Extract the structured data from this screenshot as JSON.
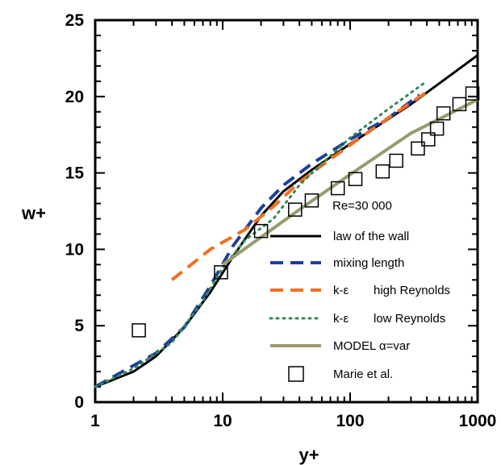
{
  "chart_data": {
    "type": "line",
    "xscale": "log",
    "xlim": [
      1,
      1000
    ],
    "ylim": [
      0,
      25
    ],
    "xlabel": "y+",
    "ylabel": "w+",
    "x_ticks": [
      "1",
      "10",
      "100",
      "1000"
    ],
    "y_ticks": [
      "0",
      "5",
      "10",
      "15",
      "20",
      "25"
    ],
    "legend_title": "Re=30 000",
    "legend_position": "lower-right",
    "grid": false,
    "series": [
      {
        "name": "law of the wall",
        "style": "solid",
        "color": "#000000",
        "points": [
          [
            1,
            1.0
          ],
          [
            2,
            2.0
          ],
          [
            3,
            3.0
          ],
          [
            5,
            4.9
          ],
          [
            8,
            7.2
          ],
          [
            12,
            9.5
          ],
          [
            20,
            12.2
          ],
          [
            30,
            13.8
          ],
          [
            50,
            15.2
          ],
          [
            100,
            16.9
          ],
          [
            300,
            19.5
          ],
          [
            1000,
            22.7
          ]
        ]
      },
      {
        "name": "mixing length",
        "style": "dashed",
        "color": "#1f3f9a",
        "points": [
          [
            1,
            1.0
          ],
          [
            2,
            2.4
          ],
          [
            3,
            3.2
          ],
          [
            5,
            4.9
          ],
          [
            8,
            7.6
          ],
          [
            12,
            10.2
          ],
          [
            20,
            12.7
          ],
          [
            30,
            14.2
          ],
          [
            50,
            15.6
          ],
          [
            100,
            17.2
          ],
          [
            200,
            18.6
          ],
          [
            350,
            20.1
          ]
        ]
      },
      {
        "name": "k-ε high Reynolds",
        "style": "dashed",
        "color": "#f07020",
        "points": [
          [
            4,
            8.0
          ],
          [
            8,
            10.0
          ],
          [
            15,
            11.3
          ],
          [
            25,
            12.8
          ],
          [
            40,
            14.4
          ],
          [
            70,
            15.9
          ],
          [
            120,
            17.3
          ],
          [
            200,
            18.6
          ],
          [
            400,
            20.3
          ]
        ]
      },
      {
        "name": "k-ε low Reynolds",
        "style": "dotted",
        "color": "#2e8b57",
        "points": [
          [
            1,
            1.0
          ],
          [
            2,
            2.2
          ],
          [
            4,
            3.9
          ],
          [
            7,
            6.6
          ],
          [
            10,
            8.8
          ],
          [
            15,
            10.6
          ],
          [
            25,
            12.0
          ],
          [
            40,
            14.2
          ],
          [
            60,
            15.6
          ],
          [
            100,
            17.3
          ],
          [
            200,
            19.2
          ],
          [
            400,
            21.0
          ]
        ]
      },
      {
        "name": "MODEL α=var",
        "style": "solid",
        "color": "#9a9a70",
        "points": [
          [
            10,
            9.0
          ],
          [
            20,
            10.8
          ],
          [
            40,
            12.6
          ],
          [
            100,
            14.9
          ],
          [
            300,
            17.6
          ],
          [
            1000,
            19.8
          ]
        ]
      },
      {
        "name": "Marie et al.",
        "style": "marker-square",
        "color": "#000000",
        "points": [
          [
            2.2,
            4.7
          ],
          [
            9.7,
            8.5
          ],
          [
            20,
            11.2
          ],
          [
            37,
            12.6
          ],
          [
            50,
            13.2
          ],
          [
            80,
            14.0
          ],
          [
            110,
            14.6
          ],
          [
            180,
            15.1
          ],
          [
            230,
            15.8
          ],
          [
            340,
            16.6
          ],
          [
            410,
            17.2
          ],
          [
            480,
            17.9
          ],
          [
            540,
            18.9
          ],
          [
            720,
            19.5
          ],
          [
            910,
            20.2
          ]
        ]
      }
    ]
  },
  "legend_items": [
    {
      "text": "law of the wall"
    },
    {
      "text": "mixing length"
    },
    {
      "text": "k-ε",
      "extra": "high Reynolds"
    },
    {
      "text": "k-ε",
      "extra": "low Reynolds"
    },
    {
      "text": "MODEL α=var"
    },
    {
      "text": "Marie et al."
    }
  ]
}
